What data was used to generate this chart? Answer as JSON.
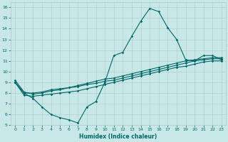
{
  "xlabel": "Humidex (Indice chaleur)",
  "bg_color": "#c8e8e8",
  "grid_color": "#b0c8c8",
  "line_color": "#006868",
  "xlim": [
    -0.5,
    23.5
  ],
  "ylim": [
    5,
    16.5
  ],
  "xticks": [
    0,
    1,
    2,
    3,
    4,
    5,
    6,
    7,
    8,
    9,
    10,
    11,
    12,
    13,
    14,
    15,
    16,
    17,
    18,
    19,
    20,
    21,
    22,
    23
  ],
  "yticks": [
    5,
    6,
    7,
    8,
    9,
    10,
    11,
    12,
    13,
    14,
    15,
    16
  ],
  "series1_x": [
    0,
    1,
    2,
    3,
    4,
    5,
    6,
    7,
    8,
    9,
    10,
    11,
    12,
    13,
    14,
    15,
    16,
    17,
    18,
    19,
    20,
    21,
    22,
    23
  ],
  "series1_y": [
    9.0,
    8.0,
    7.5,
    6.7,
    6.0,
    5.7,
    5.5,
    5.2,
    6.7,
    7.2,
    9.0,
    11.5,
    11.8,
    13.3,
    14.7,
    15.9,
    15.6,
    14.1,
    13.0,
    11.1,
    11.0,
    11.5,
    11.5,
    11.1
  ],
  "series2_x": [
    0,
    1,
    2,
    3,
    4,
    5,
    6,
    7,
    8,
    9,
    10,
    11,
    12,
    13,
    14,
    15,
    16,
    17,
    18,
    19,
    20,
    21,
    22,
    23
  ],
  "series2_y": [
    9.0,
    8.0,
    8.0,
    8.1,
    8.3,
    8.4,
    8.5,
    8.6,
    8.8,
    8.9,
    9.1,
    9.2,
    9.4,
    9.6,
    9.8,
    10.0,
    10.2,
    10.4,
    10.6,
    10.8,
    11.0,
    11.1,
    11.2,
    11.2
  ],
  "series3_x": [
    0,
    1,
    2,
    3,
    4,
    5,
    6,
    7,
    8,
    9,
    10,
    11,
    12,
    13,
    14,
    15,
    16,
    17,
    18,
    19,
    20,
    21,
    22,
    23
  ],
  "series3_y": [
    9.0,
    7.8,
    7.7,
    7.8,
    7.9,
    8.0,
    8.1,
    8.2,
    8.4,
    8.6,
    8.8,
    9.0,
    9.2,
    9.4,
    9.6,
    9.8,
    10.0,
    10.2,
    10.4,
    10.5,
    10.7,
    10.9,
    11.0,
    11.0
  ],
  "series4_x": [
    0,
    1,
    2,
    3,
    4,
    5,
    6,
    7,
    8,
    9,
    10,
    11,
    12,
    13,
    14,
    15,
    16,
    17,
    18,
    19,
    20,
    21,
    22,
    23
  ],
  "series4_y": [
    9.2,
    8.1,
    7.9,
    8.0,
    8.2,
    8.3,
    8.5,
    8.7,
    8.9,
    9.1,
    9.3,
    9.4,
    9.6,
    9.8,
    10.0,
    10.2,
    10.4,
    10.6,
    10.8,
    11.0,
    11.1,
    11.2,
    11.3,
    11.3
  ]
}
